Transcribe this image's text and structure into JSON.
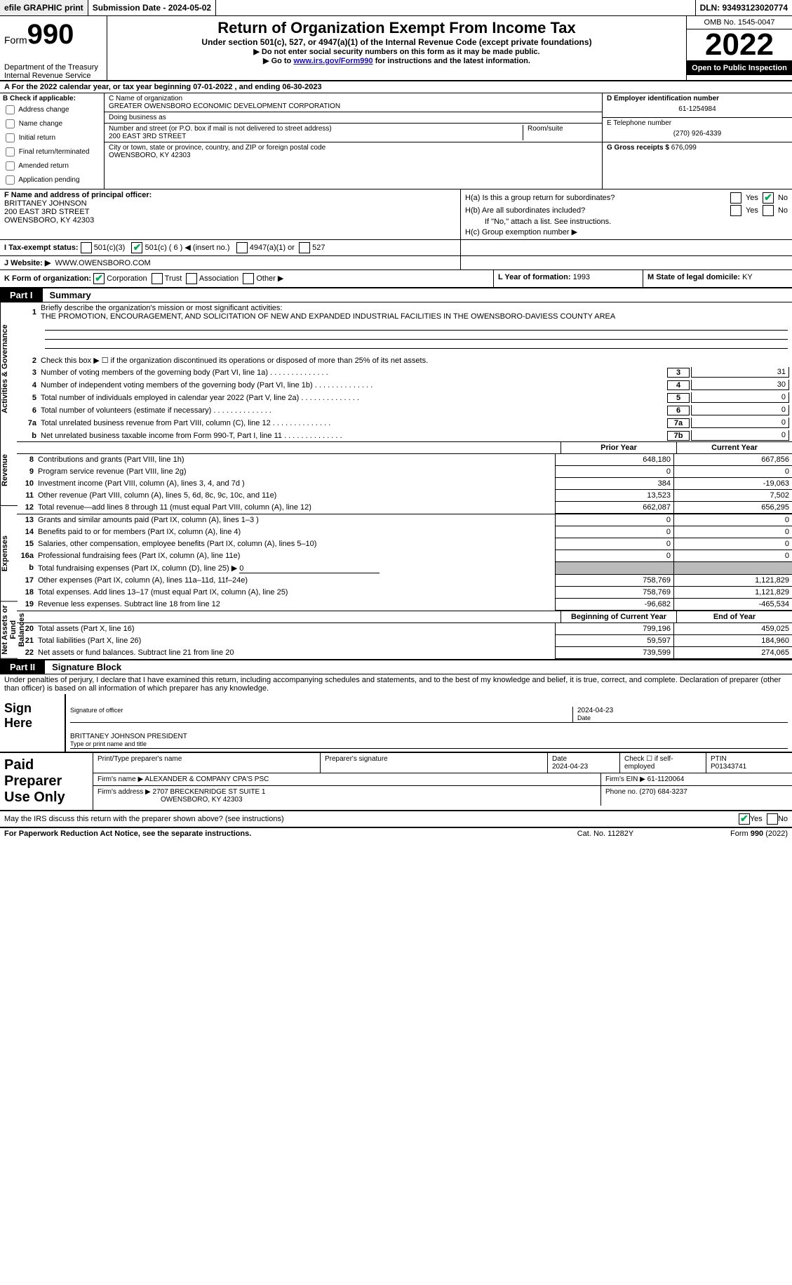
{
  "topbar": {
    "efile": "efile GRAPHIC print",
    "submission": "Submission Date - 2024-05-02",
    "dln": "DLN: 93493123020774"
  },
  "header": {
    "form_prefix": "Form",
    "form_number": "990",
    "dept": "Department of the Treasury",
    "irs": "Internal Revenue Service",
    "title": "Return of Organization Exempt From Income Tax",
    "subtitle": "Under section 501(c), 527, or 4947(a)(1) of the Internal Revenue Code (except private foundations)",
    "notice1": "▶ Do not enter social security numbers on this form as it may be made public.",
    "notice2_pre": "▶ Go to ",
    "notice2_link": "www.irs.gov/Form990",
    "notice2_post": " for instructions and the latest information.",
    "omb": "OMB No. 1545-0047",
    "year": "2022",
    "open": "Open to Public Inspection"
  },
  "lineA": "A For the 2022 calendar year, or tax year beginning 07-01-2022   , and ending 06-30-2023",
  "boxB": {
    "label": "B Check if applicable:",
    "opts": [
      "Address change",
      "Name change",
      "Initial return",
      "Final return/terminated",
      "Amended return",
      "Application pending"
    ]
  },
  "boxC": {
    "name_lbl": "C Name of organization",
    "name": "GREATER OWENSBORO ECONOMIC DEVELOPMENT CORPORATION",
    "dba_lbl": "Doing business as",
    "dba": "",
    "addr_lbl": "Number and street (or P.O. box if mail is not delivered to street address)",
    "room_lbl": "Room/suite",
    "addr": "200 EAST 3RD STREET",
    "city_lbl": "City or town, state or province, country, and ZIP or foreign postal code",
    "city": "OWENSBORO, KY  42303"
  },
  "boxD": {
    "lbl": "D Employer identification number",
    "val": "61-1254984"
  },
  "boxE": {
    "lbl": "E Telephone number",
    "val": "(270) 926-4339"
  },
  "boxG": {
    "lbl": "G Gross receipts $",
    "val": "676,099"
  },
  "boxF": {
    "lbl": "F Name and address of principal officer:",
    "name": "BRITTANEY JOHNSON",
    "addr1": "200 EAST 3RD STREET",
    "addr2": "OWENSBORO, KY  42303"
  },
  "boxH": {
    "a_lbl": "H(a)  Is this a group return for subordinates?",
    "b_lbl": "H(b)  Are all subordinates included?",
    "note": "If \"No,\" attach a list. See instructions.",
    "c_lbl": "H(c)  Group exemption number ▶",
    "yes": "Yes",
    "no": "No"
  },
  "rowI": {
    "lbl": "I   Tax-exempt status:",
    "o1": "501(c)(3)",
    "o2": "501(c) ( 6 ) ◀ (insert no.)",
    "o3": "4947(a)(1) or",
    "o4": "527"
  },
  "rowJ": {
    "lbl": "J   Website: ▶",
    "val": "WWW.OWENSBORO.COM"
  },
  "rowK": {
    "lbl": "K Form of organization:",
    "o1": "Corporation",
    "o2": "Trust",
    "o3": "Association",
    "o4": "Other ▶",
    "l_lbl": "L Year of formation:",
    "l_val": "1993",
    "m_lbl": "M State of legal domicile:",
    "m_val": "KY"
  },
  "part1": {
    "num": "Part I",
    "title": "Summary"
  },
  "vtabs": {
    "gov": "Activities & Governance",
    "rev": "Revenue",
    "exp": "Expenses",
    "net": "Net Assets or Fund Balances"
  },
  "s1": {
    "l1_lbl": "Briefly describe the organization's mission or most significant activities:",
    "l1_val": "THE PROMOTION, ENCOURAGEMENT, AND SOLICITATION OF NEW AND EXPANDED INDUSTRIAL FACILITIES IN THE OWENSBORO-DAVIESS COUNTY AREA",
    "l2": "Check this box ▶ ☐ if the organization discontinued its operations or disposed of more than 25% of its net assets.",
    "rows": [
      {
        "n": "3",
        "d": "Number of voting members of the governing body (Part VI, line 1a)",
        "b": "3",
        "v": "31"
      },
      {
        "n": "4",
        "d": "Number of independent voting members of the governing body (Part VI, line 1b)",
        "b": "4",
        "v": "30"
      },
      {
        "n": "5",
        "d": "Total number of individuals employed in calendar year 2022 (Part V, line 2a)",
        "b": "5",
        "v": "0"
      },
      {
        "n": "6",
        "d": "Total number of volunteers (estimate if necessary)",
        "b": "6",
        "v": "0"
      },
      {
        "n": "7a",
        "d": "Total unrelated business revenue from Part VIII, column (C), line 12",
        "b": "7a",
        "v": "0"
      },
      {
        "n": "b",
        "d": "Net unrelated business taxable income from Form 990-T, Part I, line 11",
        "b": "7b",
        "v": "0"
      }
    ],
    "hdr_prior": "Prior Year",
    "hdr_curr": "Current Year",
    "rev": [
      {
        "n": "8",
        "d": "Contributions and grants (Part VIII, line 1h)",
        "p": "648,180",
        "c": "667,856"
      },
      {
        "n": "9",
        "d": "Program service revenue (Part VIII, line 2g)",
        "p": "0",
        "c": "0"
      },
      {
        "n": "10",
        "d": "Investment income (Part VIII, column (A), lines 3, 4, and 7d )",
        "p": "384",
        "c": "-19,063"
      },
      {
        "n": "11",
        "d": "Other revenue (Part VIII, column (A), lines 5, 6d, 8c, 9c, 10c, and 11e)",
        "p": "13,523",
        "c": "7,502"
      },
      {
        "n": "12",
        "d": "Total revenue—add lines 8 through 11 (must equal Part VIII, column (A), line 12)",
        "p": "662,087",
        "c": "656,295"
      }
    ],
    "exp": [
      {
        "n": "13",
        "d": "Grants and similar amounts paid (Part IX, column (A), lines 1–3 )",
        "p": "0",
        "c": "0"
      },
      {
        "n": "14",
        "d": "Benefits paid to or for members (Part IX, column (A), line 4)",
        "p": "0",
        "c": "0"
      },
      {
        "n": "15",
        "d": "Salaries, other compensation, employee benefits (Part IX, column (A), lines 5–10)",
        "p": "0",
        "c": "0"
      },
      {
        "n": "16a",
        "d": "Professional fundraising fees (Part IX, column (A), line 11e)",
        "p": "0",
        "c": "0"
      }
    ],
    "l16b_pre": "Total fundraising expenses (Part IX, column (D), line 25) ▶",
    "l16b_val": "0",
    "exp2": [
      {
        "n": "17",
        "d": "Other expenses (Part IX, column (A), lines 11a–11d, 11f–24e)",
        "p": "758,769",
        "c": "1,121,829"
      },
      {
        "n": "18",
        "d": "Total expenses. Add lines 13–17 (must equal Part IX, column (A), line 25)",
        "p": "758,769",
        "c": "1,121,829"
      },
      {
        "n": "19",
        "d": "Revenue less expenses. Subtract line 18 from line 12",
        "p": "-96,682",
        "c": "-465,534"
      }
    ],
    "hdr_beg": "Beginning of Current Year",
    "hdr_end": "End of Year",
    "net": [
      {
        "n": "20",
        "d": "Total assets (Part X, line 16)",
        "p": "799,196",
        "c": "459,025"
      },
      {
        "n": "21",
        "d": "Total liabilities (Part X, line 26)",
        "p": "59,597",
        "c": "184,960"
      },
      {
        "n": "22",
        "d": "Net assets or fund balances. Subtract line 21 from line 20",
        "p": "739,599",
        "c": "274,065"
      }
    ]
  },
  "part2": {
    "num": "Part II",
    "title": "Signature Block"
  },
  "sig": {
    "decl": "Under penalties of perjury, I declare that I have examined this return, including accompanying schedules and statements, and to the best of my knowledge and belief, it is true, correct, and complete. Declaration of preparer (other than officer) is based on all information of which preparer has any knowledge.",
    "sign_here": "Sign Here",
    "sig_off": "Signature of officer",
    "date_lbl": "Date",
    "date_val": "2024-04-23",
    "name": "BRITTANEY JOHNSON PRESIDENT",
    "name_lbl": "Type or print name and title"
  },
  "prep": {
    "title": "Paid Preparer Use Only",
    "r1": {
      "c1": "Print/Type preparer's name",
      "c2": "Preparer's signature",
      "c3_lbl": "Date",
      "c3": "2024-04-23",
      "c4": "Check ☐ if self-employed",
      "c5_lbl": "PTIN",
      "c5": "P01343741"
    },
    "r2": {
      "lbl": "Firm's name    ▶",
      "val": "ALEXANDER & COMPANY CPA'S PSC",
      "ein_lbl": "Firm's EIN ▶",
      "ein": "61-1120064"
    },
    "r3": {
      "lbl": "Firm's address ▶",
      "val1": "2707 BRECKENRIDGE ST SUITE 1",
      "val2": "OWENSBORO, KY  42303",
      "ph_lbl": "Phone no.",
      "ph": "(270) 684-3237"
    }
  },
  "discuss": {
    "q": "May the IRS discuss this return with the preparer shown above? (see instructions)",
    "yes": "Yes",
    "no": "No"
  },
  "footer": {
    "f1": "For Paperwork Reduction Act Notice, see the separate instructions.",
    "f2": "Cat. No. 11282Y",
    "f3": "Form 990 (2022)"
  },
  "colors": {
    "link": "#1a0dab",
    "check": "#00aa55",
    "shade": "#bbbbbb"
  }
}
